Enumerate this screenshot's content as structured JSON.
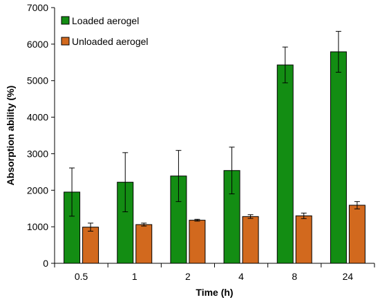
{
  "chart_data": {
    "type": "bar",
    "title": "",
    "xlabel": "Time (h)",
    "ylabel": "Absorption ability (%)",
    "ylim": [
      0,
      7000
    ],
    "yticks": [
      0,
      1000,
      2000,
      3000,
      4000,
      5000,
      6000,
      7000
    ],
    "categories": [
      "0.5",
      "1",
      "2",
      "4",
      "8",
      "24"
    ],
    "legend_position": "top-left",
    "grid": false,
    "series": [
      {
        "name": "Loaded aerogel",
        "color": "#138d13",
        "values": [
          1950,
          2220,
          2390,
          2540,
          5430,
          5790
        ],
        "errors": [
          660,
          810,
          700,
          640,
          490,
          560
        ]
      },
      {
        "name": "Unloaded aerogel",
        "color": "#d2691e",
        "values": [
          990,
          1060,
          1180,
          1280,
          1300,
          1590
        ],
        "errors": [
          110,
          40,
          25,
          50,
          75,
          100
        ]
      }
    ]
  }
}
